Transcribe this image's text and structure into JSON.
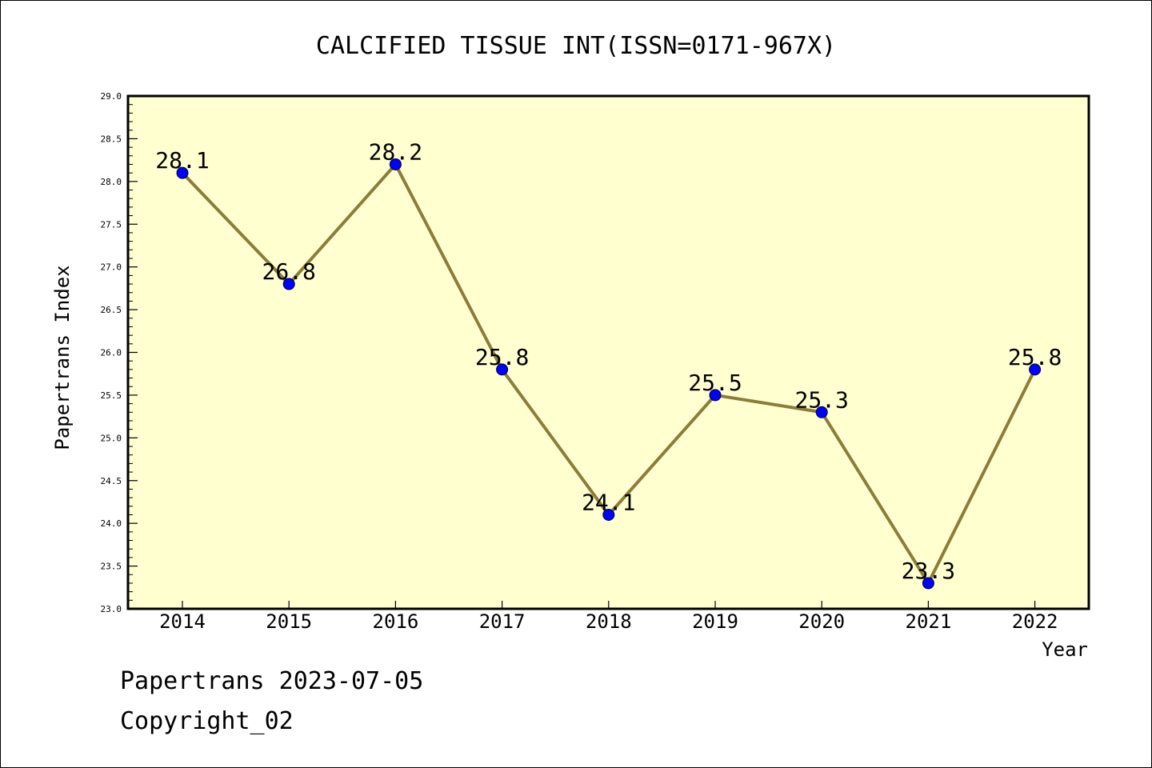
{
  "chart_data": {
    "type": "line",
    "title": "CALCIFIED TISSUE INT(ISSN=0171-967X)",
    "xlabel": "Year",
    "ylabel": "Papertrans Index",
    "categories": [
      "2014",
      "2015",
      "2016",
      "2017",
      "2018",
      "2019",
      "2020",
      "2021",
      "2022"
    ],
    "series": [
      {
        "values": [
          28.1,
          26.8,
          28.2,
          25.8,
          24.1,
          25.5,
          25.3,
          23.3,
          25.8
        ],
        "labels": [
          "28.1",
          "26.8",
          "28.2",
          "25.8",
          "24.1",
          "25.5",
          "25.3",
          "23.3",
          "25.8"
        ],
        "line_color": "#8b7d3a",
        "marker_color": "#0000ff"
      }
    ],
    "ylim": [
      23.0,
      29.0
    ],
    "yticks": [
      "23.0",
      "23.5",
      "24.0",
      "24.5",
      "25.0",
      "25.5",
      "26.0",
      "26.5",
      "27.0",
      "27.5",
      "28.0",
      "28.5",
      "29.0"
    ],
    "plot_background": "#ffffd0",
    "grid": false,
    "legend": "none"
  },
  "footer": {
    "date_line": "Papertrans 2023-07-05",
    "copyright_line": "Copyright_02"
  }
}
